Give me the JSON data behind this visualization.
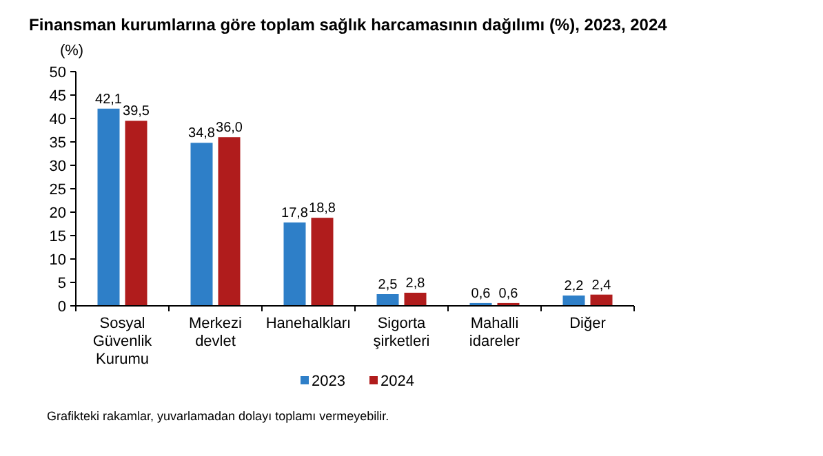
{
  "chart_data": {
    "type": "bar",
    "title": "Finansman kurumlarına göre toplam sağlık harcamasının dağılımı (%), 2023, 2024",
    "ylabel": "(%)",
    "categories": [
      "Sosyal Güvenlik Kurumu",
      "Merkezi devlet",
      "Hanehalkları",
      "Sigorta şirketleri",
      "Mahalli idareler",
      "Diğer"
    ],
    "series": [
      {
        "name": "2023",
        "color": "#2e7fc8",
        "values": [
          42.1,
          34.8,
          17.8,
          2.5,
          0.6,
          2.2
        ],
        "value_labels": [
          "42,1",
          "34,8",
          "17,8",
          "2,5",
          "0,6",
          "2,2"
        ]
      },
      {
        "name": "2024",
        "color": "#b01c1c",
        "values": [
          39.5,
          36.0,
          18.8,
          2.8,
          0.6,
          2.4
        ],
        "value_labels": [
          "39,5",
          "36,0",
          "18,8",
          "2,8",
          "0,6",
          "2,4"
        ]
      }
    ],
    "ylim": [
      0,
      50
    ],
    "yticks": [
      0,
      5,
      10,
      15,
      20,
      25,
      30,
      35,
      40,
      45,
      50
    ],
    "grid": false,
    "legend": "bottom",
    "annotations": [
      "Grafikteki rakamlar, yuvarlamadan dolayı toplamı vermeyebilir."
    ]
  }
}
